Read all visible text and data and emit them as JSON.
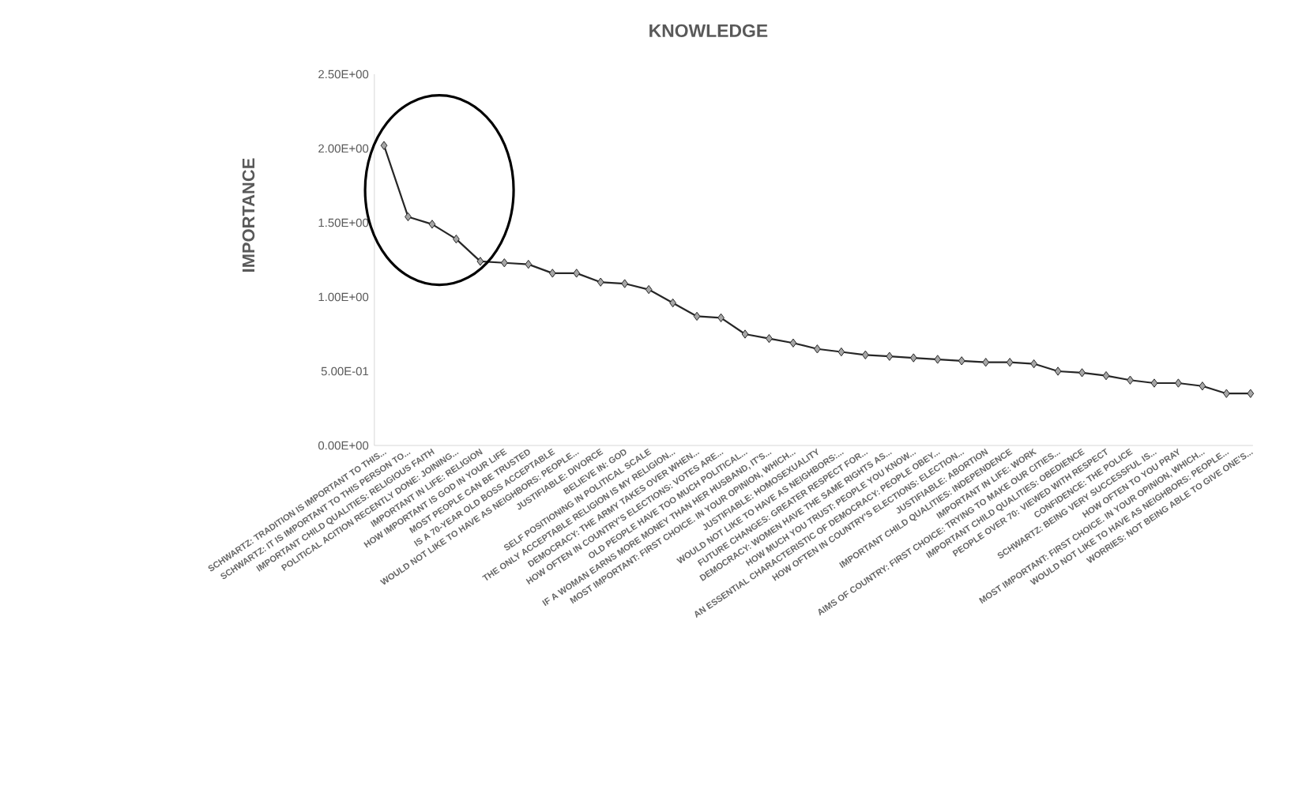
{
  "chart_data": {
    "type": "line",
    "title": "KNOWLEDGE",
    "ylabel": "IMPORTANCE",
    "categories": [
      "SCHWARTZ: TRADITION IS IMPORTANT TO THIS...",
      "SCHWARTZ: IT IS IMPORTANT TO THIS PERSON TO...",
      "IMPORTANT CHILD QUALITIES: RELIGIOUS FAITH",
      "POLITICAL ACITION RECENTLY DONE: JOINING...",
      "IMPORTANT IN LIFE: RELIGION",
      "HOW IMPORTANT IS GOD IN YOUR LIFE",
      "MOST PEOPLE CAN BE TRUSTED",
      "IS A 70-YEAR OLD BOSS ACCEPTABLE",
      "WOULD NOT LIKE TO HAVE AS NEIGHBORS: PEOPLE...",
      "JUSTIFIABLE: DIVORCE",
      "BELIEVE IN: GOD",
      "SELF POSITIONING IN POLITICAL SCALE",
      "THE ONLY ACCEPTABLE RELIGION IS MY RELIGION...",
      "DEMOCRACY: THE ARMY TAKES OVER WHEN...",
      "HOW OFTEN IN COUNTRY'S ELECTIONS: VOTES ARE...",
      "OLD PEOPLE HAVE TOO MUCH POLITICAL...",
      "IF A WOMAN EARNS MORE MONEY THAN HER HUSBAND, IT'S...",
      "MOST IMPORTANT: FIRST CHOICE. IN YOUR OPINION, WHICH...",
      "JUSTIFIABLE: HOMOSEXUALITY",
      "WOULD NOT LIKE TO HAVE AS NEIGHBORS:...",
      "FUTURE CHANGES: GREATER RESPECT FOR...",
      "DEMOCRACY: WOMEN HAVE THE SAME RIGHTS AS...",
      "HOW MUCH YOU TRUST: PEOPLE YOU KNOW...",
      "AN ESSENTIAL CHARACTERISTIC OF DEMOCRACY: PEOPLE OBEY...",
      "HOW OFTEN IN COUNTRY'S ELECTIONS: ELECTION...",
      "JUSTIFIABLE: ABORTION",
      "IMPORTANT CHILD QUALITIES: INDEPENDENCE",
      "IMPORTANT IN LIFE: WORK",
      "AIMS OF COUNTRY: FIRST CHOICE: TRYING TO MAKE OUR CITIES...",
      "IMPORTANT CHILD QUALITIES: OBEDIENCE",
      "PEOPLE OVER 70: VIEWED WITH RESPECT",
      "CONFIDENCE: THE POLICE",
      "SCHWARTZ: BEING VERY SUCCESSFUL IS...",
      "HOW OFTEN TO YOU PRAY",
      "MOST IMPORTANT: FIRST CHOICE. IN YOUR OPINION, WHICH...",
      "WOULD NOT LIKE TO HAVE AS NEIGHBORS: PEOPLE...",
      "WORRIES: NOT BEING ABLE TO GIVE ONE'S..."
    ],
    "values": [
      2.02,
      1.54,
      1.49,
      1.39,
      1.24,
      1.23,
      1.22,
      1.16,
      1.16,
      1.1,
      1.09,
      1.05,
      0.96,
      0.87,
      0.86,
      0.75,
      0.72,
      0.69,
      0.65,
      0.63,
      0.61,
      0.6,
      0.59,
      0.58,
      0.57,
      0.56,
      0.56,
      0.55,
      0.5,
      0.49,
      0.47,
      0.44,
      0.42,
      0.42,
      0.4,
      0.35,
      0.35
    ],
    "color": "#262626",
    "marker": "diamond",
    "grid": false,
    "ylim": [
      0,
      2.5
    ],
    "yticks": [
      {
        "value": 0,
        "label": "0.00E+00"
      },
      {
        "value": 0.5,
        "label": "5.00E-01"
      },
      {
        "value": 1,
        "label": "1.00E+00"
      },
      {
        "value": 1.5,
        "label": "1.50E+00"
      },
      {
        "value": 2,
        "label": "2.00E+00"
      },
      {
        "value": 2.5,
        "label": "2.50E+00"
      }
    ]
  }
}
